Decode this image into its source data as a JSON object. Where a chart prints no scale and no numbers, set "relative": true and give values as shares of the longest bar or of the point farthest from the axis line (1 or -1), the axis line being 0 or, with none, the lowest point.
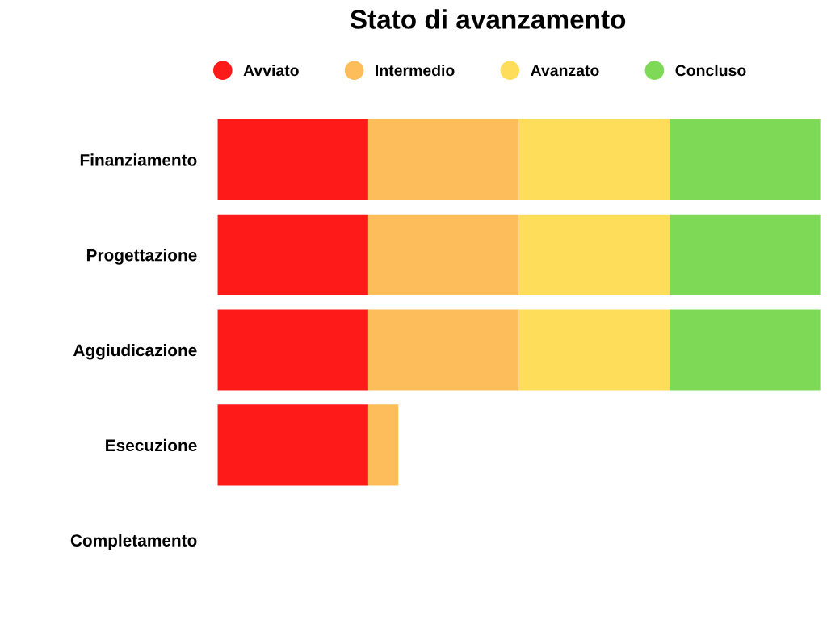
{
  "chart_data": {
    "type": "bar",
    "title": "Stato di avanzamento",
    "orientation": "horizontal",
    "stacked": true,
    "relative": true,
    "legend": "top",
    "grid": false,
    "categories": [
      "Finanziamento",
      "Progettazione",
      "Aggiudicazione",
      "Esecuzione",
      "Completamento"
    ],
    "series": [
      {
        "name": "Avviato",
        "color": "#ff1a1a",
        "values": [
          0.25,
          0.25,
          0.25,
          0.25,
          0
        ]
      },
      {
        "name": "Intermedio",
        "color": "#fdbd5a",
        "values": [
          0.25,
          0.25,
          0.25,
          0.05,
          0
        ]
      },
      {
        "name": "Avanzato",
        "color": "#fedd5a",
        "values": [
          0.25,
          0.25,
          0.25,
          0,
          0
        ]
      },
      {
        "name": "Concluso",
        "color": "#7ed957",
        "values": [
          0.25,
          0.25,
          0.25,
          0,
          0
        ]
      }
    ]
  }
}
